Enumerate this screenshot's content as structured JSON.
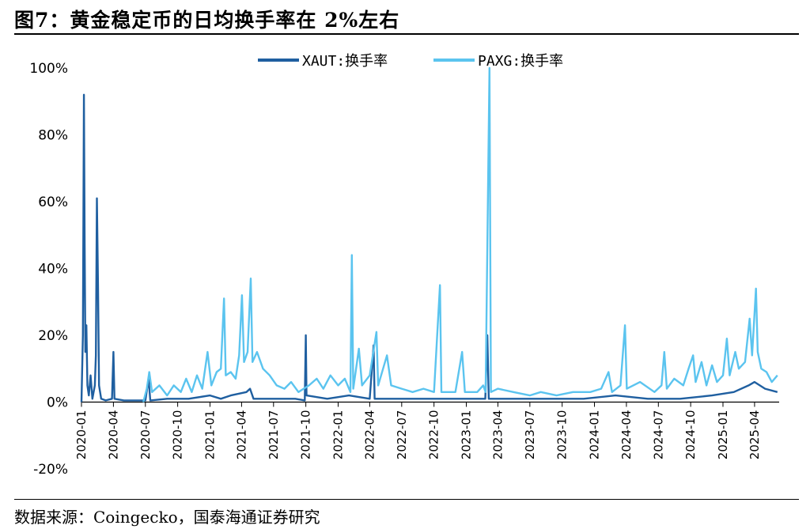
{
  "title": "图7：黄金稳定币的日均换手率在 2%左右",
  "source": "数据来源：Coingecko，国泰海通证券研究",
  "chart_data": {
    "type": "line",
    "x_ticks": [
      "2020-01",
      "2020-04",
      "2020-07",
      "2020-10",
      "2021-01",
      "2021-04",
      "2021-07",
      "2021-10",
      "2022-01",
      "2022-04",
      "2022-07",
      "2022-10",
      "2023-01",
      "2023-04",
      "2023-07",
      "2023-10",
      "2024-01",
      "2024-04",
      "2024-07",
      "2024-10",
      "2025-01",
      "2025-04"
    ],
    "y_ticks": [
      "-20%",
      "0%",
      "20%",
      "40%",
      "60%",
      "80%",
      "100%"
    ],
    "ylim": [
      -20,
      100
    ],
    "xlim": [
      "2020-01-01",
      "2025-06-10"
    ],
    "legend_position": "top",
    "series": [
      {
        "name": "XAUT:换手率",
        "color": "#1f5fa0",
        "points": [
          [
            "2020-01-01",
            0
          ],
          [
            "2020-01-05",
            20
          ],
          [
            "2020-01-08",
            92
          ],
          [
            "2020-01-10",
            48
          ],
          [
            "2020-01-12",
            15
          ],
          [
            "2020-01-15",
            23
          ],
          [
            "2020-01-18",
            5
          ],
          [
            "2020-01-22",
            2
          ],
          [
            "2020-01-27",
            8
          ],
          [
            "2020-02-01",
            1
          ],
          [
            "2020-02-08",
            5
          ],
          [
            "2020-02-11",
            14
          ],
          [
            "2020-02-14",
            61
          ],
          [
            "2020-02-17",
            35
          ],
          [
            "2020-02-20",
            5
          ],
          [
            "2020-02-26",
            1
          ],
          [
            "2020-03-10",
            0.5
          ],
          [
            "2020-03-28",
            1
          ],
          [
            "2020-04-01",
            15
          ],
          [
            "2020-04-04",
            1
          ],
          [
            "2020-05-01",
            0.5
          ],
          [
            "2020-06-01",
            0.5
          ],
          [
            "2020-07-01",
            0.5
          ],
          [
            "2020-07-10",
            7
          ],
          [
            "2020-07-15",
            0.5
          ],
          [
            "2020-09-01",
            1
          ],
          [
            "2020-11-01",
            1
          ],
          [
            "2021-01-01",
            2
          ],
          [
            "2021-02-01",
            1
          ],
          [
            "2021-03-01",
            2
          ],
          [
            "2021-04-15",
            3
          ],
          [
            "2021-04-25",
            4
          ],
          [
            "2021-05-05",
            1
          ],
          [
            "2021-07-01",
            1
          ],
          [
            "2021-09-01",
            1
          ],
          [
            "2021-09-28",
            0.5
          ],
          [
            "2021-10-01",
            20
          ],
          [
            "2021-10-03",
            2
          ],
          [
            "2021-12-01",
            1
          ],
          [
            "2022-02-01",
            2
          ],
          [
            "2022-04-01",
            1
          ],
          [
            "2022-04-12",
            17
          ],
          [
            "2022-04-15",
            1
          ],
          [
            "2022-06-01",
            1
          ],
          [
            "2022-09-01",
            1
          ],
          [
            "2022-12-01",
            1
          ],
          [
            "2023-02-01",
            1
          ],
          [
            "2023-02-24",
            1
          ],
          [
            "2023-03-02",
            20
          ],
          [
            "2023-03-06",
            1
          ],
          [
            "2023-06-01",
            1
          ],
          [
            "2023-09-01",
            1
          ],
          [
            "2023-12-01",
            1
          ],
          [
            "2024-03-01",
            2
          ],
          [
            "2024-06-01",
            1
          ],
          [
            "2024-09-01",
            1
          ],
          [
            "2024-12-01",
            2
          ],
          [
            "2025-02-01",
            3
          ],
          [
            "2025-03-15",
            5
          ],
          [
            "2025-04-01",
            6
          ],
          [
            "2025-05-01",
            4
          ],
          [
            "2025-06-05",
            3
          ]
        ]
      },
      {
        "name": "PAXG:换手率",
        "color": "#5bc4ef",
        "points": [
          [
            "2020-06-25",
            0
          ],
          [
            "2020-07-05",
            4
          ],
          [
            "2020-07-12",
            9
          ],
          [
            "2020-07-20",
            3
          ],
          [
            "2020-08-10",
            5
          ],
          [
            "2020-09-01",
            2
          ],
          [
            "2020-09-20",
            5
          ],
          [
            "2020-10-10",
            3
          ],
          [
            "2020-10-25",
            7
          ],
          [
            "2020-11-10",
            3
          ],
          [
            "2020-11-25",
            8
          ],
          [
            "2020-12-10",
            4
          ],
          [
            "2020-12-25",
            15
          ],
          [
            "2021-01-05",
            5
          ],
          [
            "2021-01-20",
            9
          ],
          [
            "2021-02-01",
            10
          ],
          [
            "2021-02-10",
            31
          ],
          [
            "2021-02-15",
            8
          ],
          [
            "2021-03-01",
            9
          ],
          [
            "2021-03-15",
            7
          ],
          [
            "2021-03-25",
            14
          ],
          [
            "2021-04-02",
            32
          ],
          [
            "2021-04-08",
            12
          ],
          [
            "2021-04-18",
            15
          ],
          [
            "2021-04-27",
            37
          ],
          [
            "2021-05-02",
            12
          ],
          [
            "2021-05-15",
            15
          ],
          [
            "2021-06-01",
            10
          ],
          [
            "2021-06-20",
            8
          ],
          [
            "2021-07-10",
            5
          ],
          [
            "2021-08-01",
            4
          ],
          [
            "2021-08-20",
            6
          ],
          [
            "2021-09-10",
            3
          ],
          [
            "2021-10-10",
            5
          ],
          [
            "2021-11-01",
            7
          ],
          [
            "2021-11-20",
            4
          ],
          [
            "2021-12-10",
            8
          ],
          [
            "2022-01-01",
            5
          ],
          [
            "2022-01-20",
            7
          ],
          [
            "2022-02-05",
            3
          ],
          [
            "2022-02-09",
            44
          ],
          [
            "2022-02-13",
            4
          ],
          [
            "2022-03-01",
            16
          ],
          [
            "2022-03-10",
            5
          ],
          [
            "2022-04-01",
            8
          ],
          [
            "2022-04-20",
            21
          ],
          [
            "2022-04-25",
            5
          ],
          [
            "2022-05-20",
            14
          ],
          [
            "2022-06-01",
            5
          ],
          [
            "2022-07-01",
            4
          ],
          [
            "2022-08-01",
            3
          ],
          [
            "2022-09-01",
            4
          ],
          [
            "2022-10-01",
            3
          ],
          [
            "2022-10-18",
            35
          ],
          [
            "2022-10-22",
            3
          ],
          [
            "2022-12-01",
            3
          ],
          [
            "2022-12-20",
            15
          ],
          [
            "2022-12-28",
            3
          ],
          [
            "2023-02-01",
            3
          ],
          [
            "2023-02-18",
            5
          ],
          [
            "2023-02-25",
            3
          ],
          [
            "2023-03-08",
            100
          ],
          [
            "2023-03-12",
            3
          ],
          [
            "2023-04-01",
            4
          ],
          [
            "2023-05-15",
            3
          ],
          [
            "2023-07-01",
            2
          ],
          [
            "2023-08-01",
            3
          ],
          [
            "2023-09-15",
            2
          ],
          [
            "2023-11-01",
            3
          ],
          [
            "2023-12-20",
            3
          ],
          [
            "2024-01-20",
            4
          ],
          [
            "2024-02-10",
            9
          ],
          [
            "2024-02-20",
            3
          ],
          [
            "2024-03-15",
            5
          ],
          [
            "2024-03-28",
            23
          ],
          [
            "2024-04-02",
            4
          ],
          [
            "2024-05-10",
            6
          ],
          [
            "2024-06-20",
            3
          ],
          [
            "2024-07-10",
            5
          ],
          [
            "2024-07-18",
            15
          ],
          [
            "2024-07-25",
            4
          ],
          [
            "2024-08-15",
            7
          ],
          [
            "2024-09-10",
            5
          ],
          [
            "2024-09-25",
            10
          ],
          [
            "2024-10-08",
            14
          ],
          [
            "2024-10-15",
            6
          ],
          [
            "2024-11-01",
            12
          ],
          [
            "2024-11-15",
            5
          ],
          [
            "2024-12-01",
            11
          ],
          [
            "2024-12-15",
            6
          ],
          [
            "2025-01-01",
            8
          ],
          [
            "2025-01-12",
            19
          ],
          [
            "2025-01-20",
            8
          ],
          [
            "2025-02-05",
            15
          ],
          [
            "2025-02-15",
            10
          ],
          [
            "2025-03-05",
            12
          ],
          [
            "2025-03-18",
            25
          ],
          [
            "2025-03-25",
            14
          ],
          [
            "2025-04-05",
            34
          ],
          [
            "2025-04-10",
            15
          ],
          [
            "2025-04-20",
            10
          ],
          [
            "2025-05-05",
            9
          ],
          [
            "2025-05-20",
            6
          ],
          [
            "2025-06-05",
            8
          ]
        ]
      }
    ]
  }
}
